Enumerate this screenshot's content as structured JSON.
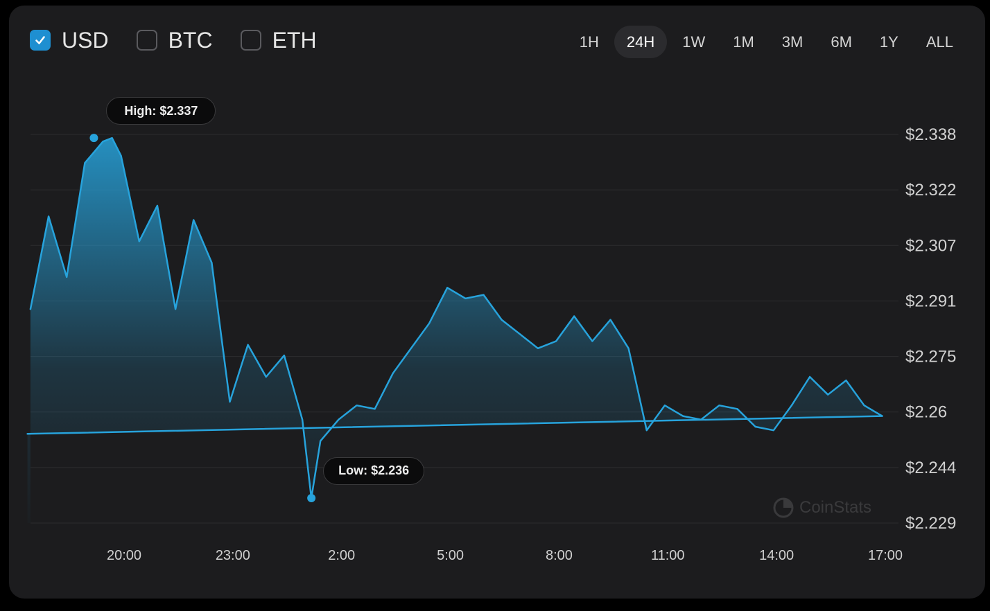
{
  "currencies": [
    {
      "label": "USD",
      "checked": true
    },
    {
      "label": "BTC",
      "checked": false
    },
    {
      "label": "ETH",
      "checked": false
    }
  ],
  "ranges": [
    {
      "label": "1H",
      "active": false
    },
    {
      "label": "24H",
      "active": true
    },
    {
      "label": "1W",
      "active": false
    },
    {
      "label": "1M",
      "active": false
    },
    {
      "label": "3M",
      "active": false
    },
    {
      "label": "6M",
      "active": false
    },
    {
      "label": "1Y",
      "active": false
    },
    {
      "label": "ALL",
      "active": false
    }
  ],
  "colors": {
    "accent": "#1e8fd1",
    "line": "#27a3dc",
    "background": "#1c1c1e"
  },
  "watermark": "CoinStats",
  "chart_data": {
    "type": "area",
    "title": "",
    "xlabel": "",
    "ylabel": "",
    "x_ticks": [
      "20:00",
      "23:00",
      "2:00",
      "5:00",
      "8:00",
      "11:00",
      "14:00",
      "17:00"
    ],
    "y_ticks": [
      "$2.338",
      "$2.322",
      "$2.307",
      "$2.291",
      "$2.275",
      "$2.26",
      "$2.244",
      "$2.229"
    ],
    "ylim": [
      2.229,
      2.338
    ],
    "grid": true,
    "high": {
      "label": "High: $2.337",
      "value": 2.337,
      "x": "19:10"
    },
    "low": {
      "label": "Low: $2.236",
      "value": 2.236,
      "x": "1:10"
    },
    "series": [
      {
        "x": [
          "17:25",
          "17:55",
          "18:25",
          "18:55",
          "19:25",
          "19:40",
          "19:55",
          "20:25",
          "20:55",
          "21:25",
          "21:55",
          "22:25",
          "22:55",
          "23:25",
          "23:55",
          "0:25",
          "0:55",
          "1:10",
          "1:25",
          "1:55",
          "2:25",
          "2:55",
          "3:25",
          "3:55",
          "4:25",
          "4:55",
          "5:25",
          "5:55",
          "6:25",
          "6:55",
          "7:25",
          "7:55",
          "8:25",
          "8:55",
          "9:25",
          "9:55",
          "10:25",
          "10:55",
          "11:25",
          "11:55",
          "12:25",
          "12:55",
          "13:25",
          "13:55",
          "14:25",
          "14:55",
          "15:25",
          "15:55",
          "16:25",
          "16:55",
          "17:20"
        ],
        "values": [
          2.289,
          2.315,
          2.298,
          2.33,
          2.336,
          2.337,
          2.332,
          2.308,
          2.318,
          2.289,
          2.314,
          2.302,
          2.263,
          2.279,
          2.27,
          2.276,
          2.258,
          2.236,
          2.252,
          2.258,
          2.262,
          2.261,
          2.271,
          2.278,
          2.285,
          2.295,
          2.292,
          2.293,
          2.286,
          2.282,
          2.278,
          2.28,
          2.287,
          2.28,
          2.286,
          2.278,
          2.255,
          2.262,
          2.259,
          2.258,
          2.262,
          2.261,
          2.256,
          2.255,
          2.262,
          2.27,
          2.265,
          2.269,
          2.262,
          2.259,
          2.254
        ]
      }
    ]
  }
}
